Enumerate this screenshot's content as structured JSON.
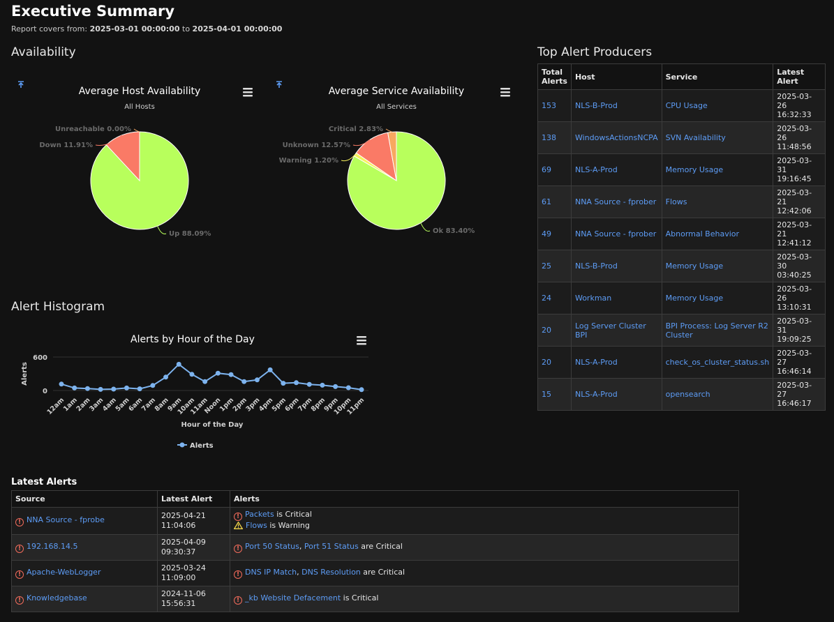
{
  "header": {
    "title": "Executive Summary",
    "range_prefix": "Report covers from:",
    "range_start": "2025-03-01 00:00:00",
    "range_sep": "to",
    "range_end": "2025-04-01 00:00:00"
  },
  "sections": {
    "availability": "Availability",
    "top_alert": "Top Alert Producers",
    "histogram": "Alert Histogram",
    "latest": "Latest Alerts"
  },
  "colors": {
    "up_ok": "#b8ff5c",
    "down_critical": "#fa7a66",
    "warning": "#f7f15c",
    "unknown": "#f7a860",
    "line": "#7db3ee"
  },
  "icons": {
    "export": "pin-icon",
    "menu": "hamburger-menu-icon",
    "critical": "critical-circle-icon",
    "warning": "warning-triangle-icon"
  },
  "chart_data": [
    {
      "type": "pie",
      "title": "Average Host Availability",
      "subtitle": "All Hosts",
      "slices": [
        {
          "label": "Up",
          "value": 88.09,
          "display": "Up 88.09%",
          "color": "#b8ff5c"
        },
        {
          "label": "Down",
          "value": 11.91,
          "display": "Down 11.91%",
          "color": "#fa7a66"
        },
        {
          "label": "Unreachable",
          "value": 0.0,
          "display": "Unreachable 0.00%",
          "color": "#f7a860"
        }
      ]
    },
    {
      "type": "pie",
      "title": "Average Service Availability",
      "subtitle": "All Services",
      "slices": [
        {
          "label": "Ok",
          "value": 83.4,
          "display": "Ok 83.40%",
          "color": "#b8ff5c"
        },
        {
          "label": "Warning",
          "value": 1.2,
          "display": "Warning 1.20%",
          "color": "#f7f15c"
        },
        {
          "label": "Unknown",
          "value": 12.57,
          "display": "Unknown 12.57%",
          "color": "#fa7a66"
        },
        {
          "label": "Critical",
          "value": 2.83,
          "display": "Critical 2.83%",
          "color": "#f7a860"
        }
      ]
    },
    {
      "type": "line",
      "title": "Alerts by Hour of the Day",
      "xlabel": "Hour of the Day",
      "ylabel": "Alerts",
      "ylim": [
        0,
        600
      ],
      "yticks": [
        "600",
        "0"
      ],
      "categories": [
        "12am",
        "1am",
        "2am",
        "3am",
        "4am",
        "5am",
        "6am",
        "7am",
        "8am",
        "9am",
        "10am",
        "11am",
        "Noon",
        "1pm",
        "2pm",
        "3pm",
        "4pm",
        "5pm",
        "6pm",
        "7pm",
        "8pm",
        "9pm",
        "10pm",
        "11pm"
      ],
      "series": [
        {
          "name": "Alerts",
          "values": [
            115,
            45,
            35,
            20,
            25,
            45,
            30,
            90,
            240,
            470,
            290,
            160,
            310,
            285,
            160,
            190,
            370,
            130,
            140,
            110,
            95,
            70,
            50,
            15
          ]
        }
      ],
      "legend": "bottom-center"
    }
  ],
  "top_alert": {
    "headers": [
      "Total Alerts",
      "Host",
      "Service",
      "Latest Alert"
    ],
    "rows": [
      {
        "total": "153",
        "host": "NLS-B-Prod",
        "service": "CPU Usage",
        "latest": "2025-03-26 16:32:33"
      },
      {
        "total": "138",
        "host": "WindowsActionsNCPA",
        "service": "SVN Availability",
        "latest": "2025-03-26 11:48:56"
      },
      {
        "total": "69",
        "host": "NLS-A-Prod",
        "service": "Memory Usage",
        "latest": "2025-03-31 19:16:45"
      },
      {
        "total": "61",
        "host": "NNA Source - fprober",
        "service": "Flows",
        "latest": "2025-03-21 12:42:06"
      },
      {
        "total": "49",
        "host": "NNA Source - fprober",
        "service": "Abnormal Behavior",
        "latest": "2025-03-21 12:41:12"
      },
      {
        "total": "25",
        "host": "NLS-B-Prod",
        "service": "Memory Usage",
        "latest": "2025-03-30 03:40:25"
      },
      {
        "total": "24",
        "host": "Workman",
        "service": "Memory Usage",
        "latest": "2025-03-26 13:10:31"
      },
      {
        "total": "20",
        "host": "Log Server Cluster BPI",
        "service": "BPI Process: Log Server R2 Cluster",
        "latest": "2025-03-31 19:09:25"
      },
      {
        "total": "20",
        "host": "NLS-A-Prod",
        "service": "check_os_cluster_status.sh",
        "latest": "2025-03-27 16:46:14"
      },
      {
        "total": "15",
        "host": "NLS-A-Prod",
        "service": "opensearch",
        "latest": "2025-03-27 16:46:17"
      }
    ]
  },
  "latest_alerts": {
    "headers": [
      "Source",
      "Latest Alert",
      "Alerts"
    ],
    "rows": [
      {
        "source": "NNA Source - fprobe",
        "date": "2025-04-21",
        "time": "11:04:06",
        "lines": [
          {
            "icon": "critical",
            "links": [
              "Packets"
            ],
            "suffix": " is Critical"
          },
          {
            "icon": "warning",
            "links": [
              "Flows"
            ],
            "suffix": " is Warning"
          }
        ]
      },
      {
        "source": "192.168.14.5",
        "date": "2025-04-09",
        "time": "09:30:37",
        "lines": [
          {
            "icon": "critical",
            "links": [
              "Port 50 Status",
              "Port 51 Status"
            ],
            "suffix": " are Critical"
          }
        ]
      },
      {
        "source": "Apache-WebLogger",
        "date": "2025-03-24",
        "time": "11:09:00",
        "lines": [
          {
            "icon": "critical",
            "links": [
              "DNS IP Match",
              "DNS Resolution"
            ],
            "suffix": " are Critical"
          }
        ]
      },
      {
        "source": "Knowledgebase",
        "date": "2024-11-06",
        "time": "15:56:31",
        "lines": [
          {
            "icon": "critical",
            "links": [
              "_kb Website Defacement"
            ],
            "suffix": " is Critical"
          }
        ]
      }
    ]
  }
}
